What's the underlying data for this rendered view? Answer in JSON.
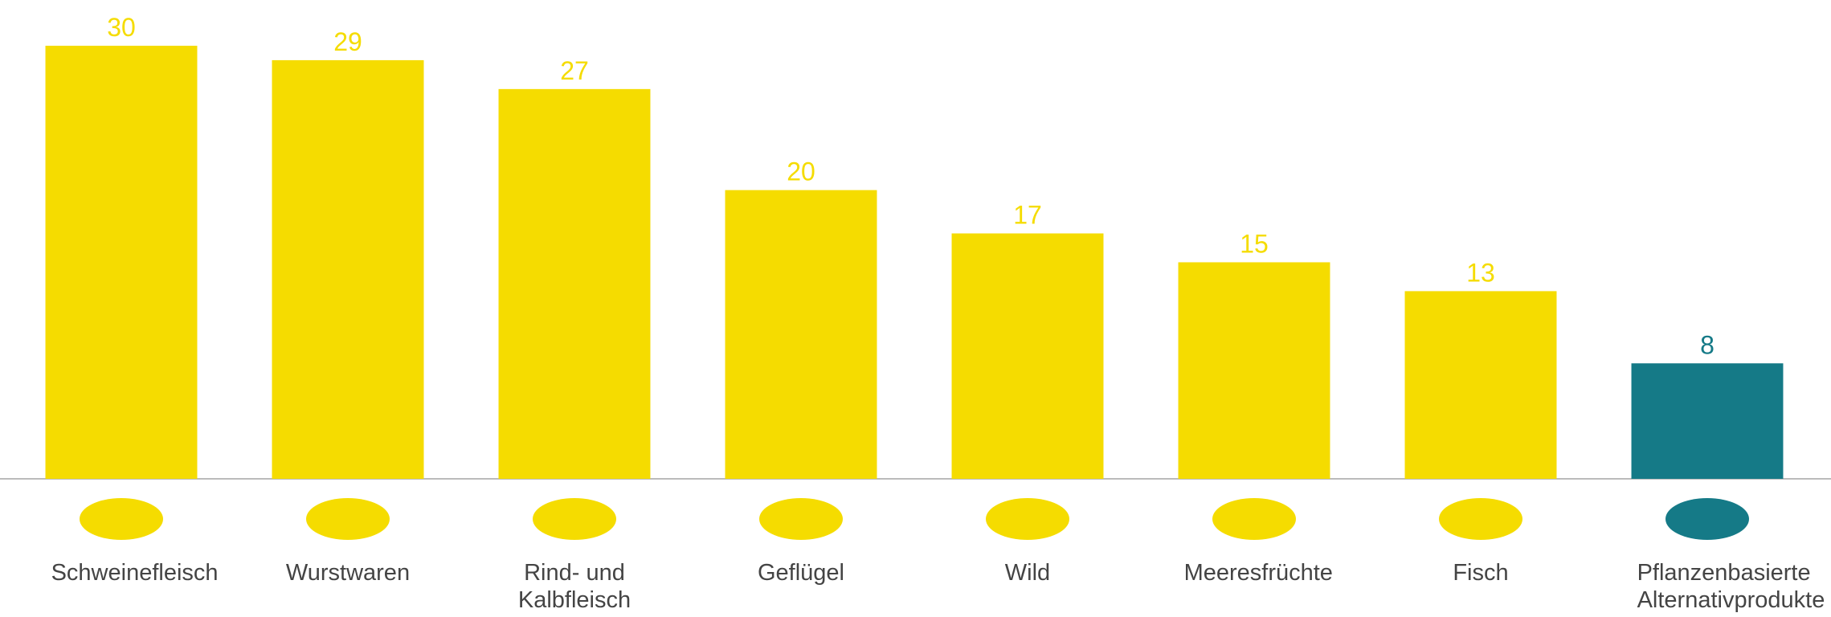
{
  "chart_data": {
    "type": "bar",
    "categories": [
      "Schweinefleisch",
      "Wurstwaren",
      "Rind- und Kalbfleisch",
      "Geflügel",
      "Wild",
      "Meeresfrüchte",
      "Fisch",
      "Pflanzenbasierte Alternativprodukte"
    ],
    "values": [
      30,
      29,
      27,
      20,
      17,
      15,
      13,
      8
    ],
    "colors": [
      "#f5dc00",
      "#f5dc00",
      "#f5dc00",
      "#f5dc00",
      "#f5dc00",
      "#f5dc00",
      "#f5dc00",
      "#157a87"
    ],
    "ylim": [
      0,
      32
    ]
  }
}
